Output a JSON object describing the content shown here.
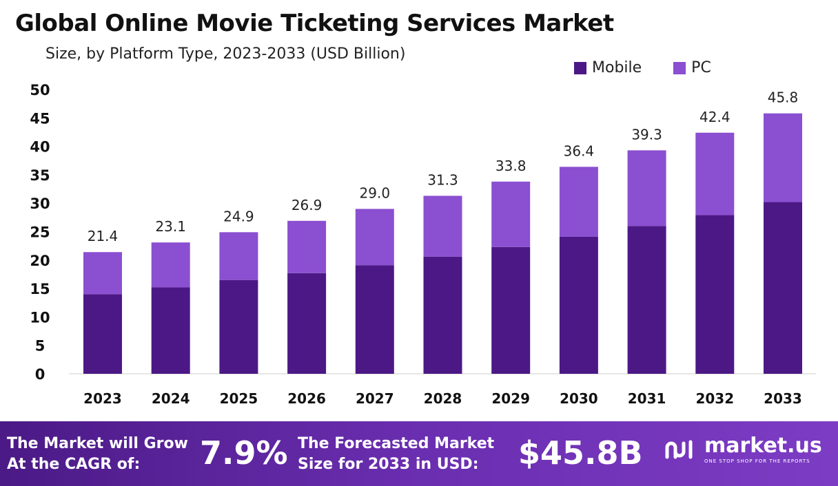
{
  "chart_data": {
    "type": "bar",
    "stacked": true,
    "title": "Global Online Movie Ticketing Services Market",
    "subtitle": "Size, by Platform Type, 2023-2033 (USD Billion)",
    "categories": [
      "2023",
      "2024",
      "2025",
      "2026",
      "2027",
      "2028",
      "2029",
      "2030",
      "2031",
      "2032",
      "2033"
    ],
    "series": [
      {
        "name": "Mobile",
        "color": "#4c1886",
        "values": [
          14.0,
          15.2,
          16.5,
          17.7,
          19.1,
          20.6,
          22.3,
          24.1,
          26.0,
          27.9,
          30.2
        ]
      },
      {
        "name": "PC",
        "color": "#8b4fd1",
        "values": [
          7.4,
          7.9,
          8.4,
          9.2,
          9.9,
          10.7,
          11.5,
          12.3,
          13.3,
          14.5,
          15.6
        ]
      }
    ],
    "totals": [
      "21.4",
      "23.1",
      "24.9",
      "26.9",
      "29.0",
      "31.3",
      "33.8",
      "36.4",
      "39.3",
      "42.4",
      "45.8"
    ],
    "yticks": [
      "0",
      "5",
      "10",
      "15",
      "20",
      "25",
      "30",
      "35",
      "40",
      "45",
      "50"
    ],
    "ylim": [
      0,
      50
    ],
    "legend_position": "top-right",
    "grid": false
  },
  "footer": {
    "cagr_line1": "The Market will Grow",
    "cagr_line2": "At the CAGR of:",
    "cagr_value": "7.9%",
    "forecast_line1": "The Forecasted Market",
    "forecast_line2": "Size for 2033 in USD:",
    "forecast_value": "$45.8B",
    "brand_name": "market.us",
    "brand_tagline": "ONE STOP SHOP FOR THE REPORTS",
    "brand_icon": "market-us-logo-icon"
  }
}
